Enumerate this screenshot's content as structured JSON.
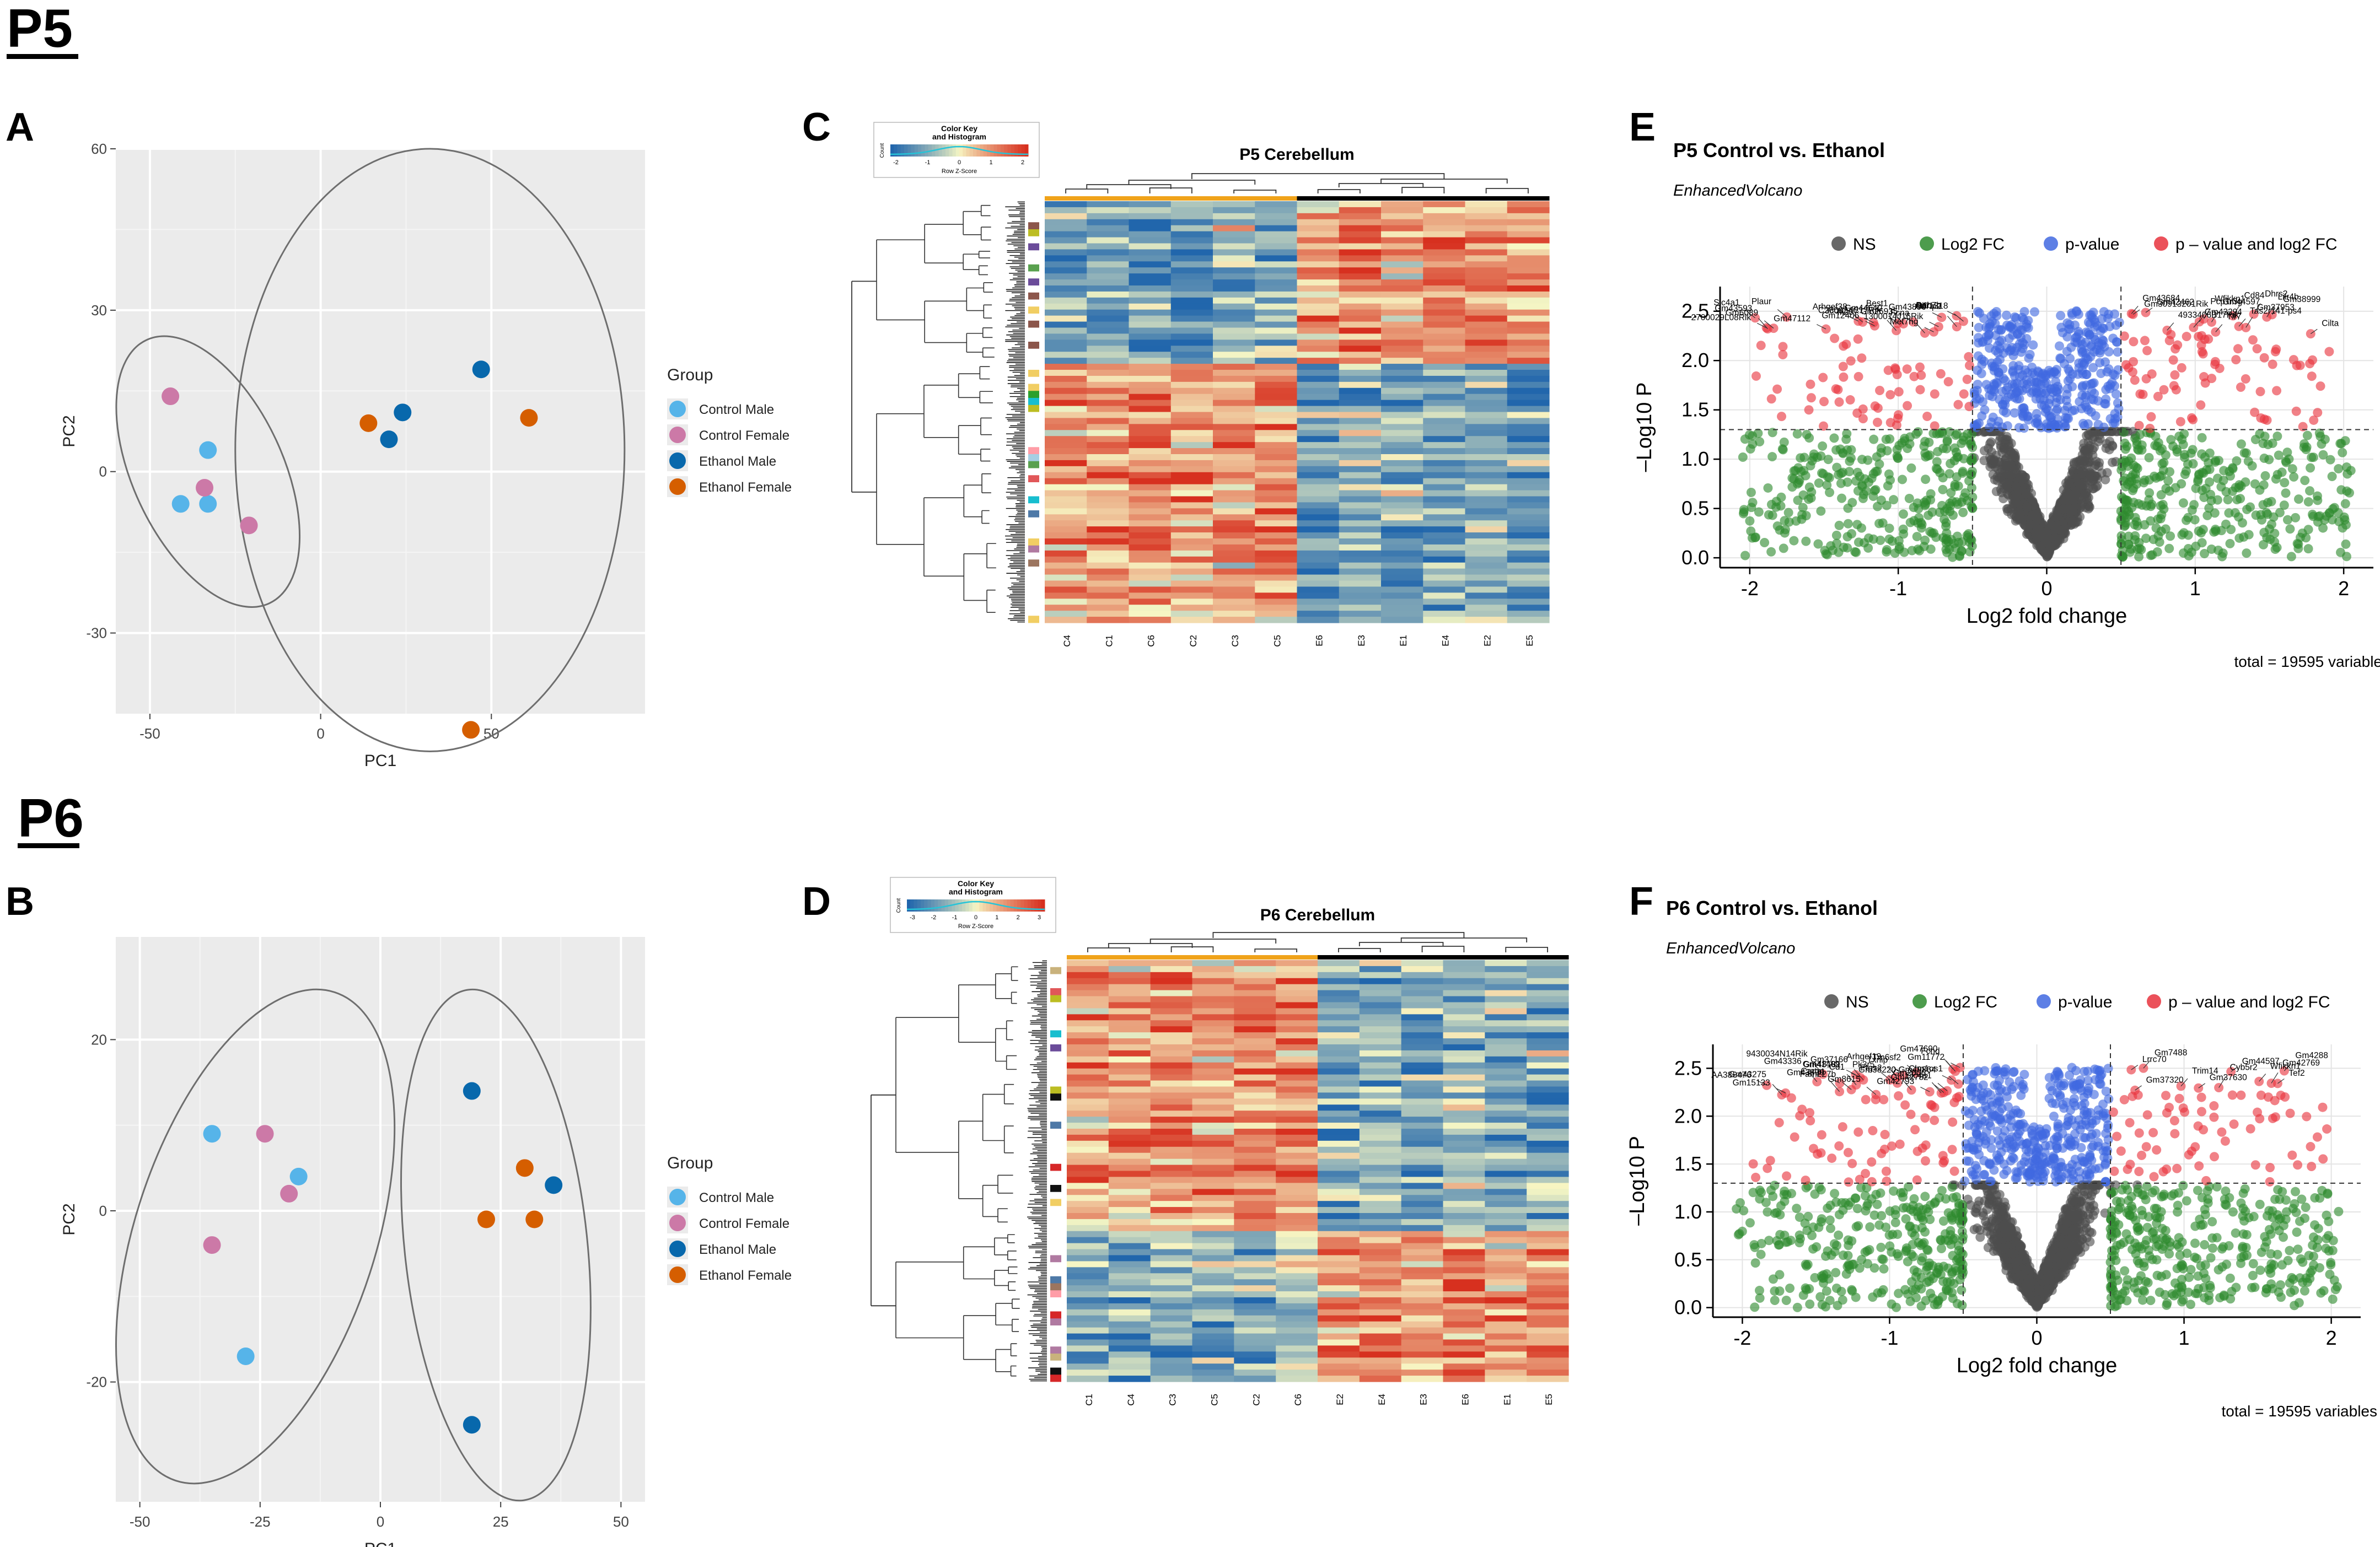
{
  "sections": {
    "p5": {
      "label": "P5"
    },
    "p6": {
      "label": "P6"
    }
  },
  "panels": {
    "A": "A",
    "B": "B",
    "C": "C",
    "D": "D",
    "E": "E",
    "F": "F"
  },
  "colors": {
    "control_male": "#56b4e9",
    "control_female": "#cc79a7",
    "ethanol_male": "#0868ac",
    "ethanol_female": "#d55e00",
    "plot_bg": "#ebebeb",
    "ns": "#4d4d4d",
    "log2fc": "#2e8b2e",
    "pvalue": "#4169e1",
    "both": "#e8333d",
    "heat_low": "#2166ac",
    "heat_mid": "#f7f7c4",
    "heat_high": "#d7301f"
  },
  "pca_legend": {
    "title": "Group",
    "items": [
      "Control Male",
      "Control Female",
      "Ethanol Male",
      "Ethanol Female"
    ]
  },
  "heatmap_common": {
    "color_key_title": "Color Key",
    "histogram_title": "and Histogram",
    "count_label": "Count",
    "z_score_label": "Row Z-Score",
    "ticks": [
      "-2",
      "-1",
      "0",
      "1",
      "2"
    ],
    "ticks_p6": [
      "-3",
      "-2",
      "-1",
      "0",
      "1",
      "2",
      "3"
    ]
  },
  "volcano_common": {
    "subtitle": "EnhancedVolcano",
    "legend_items": [
      "NS",
      "Log2 FC",
      "p-value",
      "p – value and log2 FC"
    ],
    "total": "total = 19595 variables"
  },
  "chart_data": [
    {
      "id": "A",
      "type": "scatter",
      "xlabel": "PC1",
      "ylabel": "PC2",
      "xlim": [
        -60,
        95
      ],
      "ylim": [
        -45,
        60
      ],
      "xticks": [
        -50,
        0,
        50
      ],
      "yticks": [
        -30,
        0,
        30,
        60
      ],
      "series": [
        {
          "name": "Control Male",
          "points": [
            [
              -33,
              4
            ],
            [
              -41,
              -6
            ],
            [
              -33,
              -6
            ]
          ]
        },
        {
          "name": "Control Female",
          "points": [
            [
              -44,
              14
            ],
            [
              -34,
              -3
            ],
            [
              -21,
              -10
            ]
          ]
        },
        {
          "name": "Ethanol Male",
          "points": [
            [
              47,
              19
            ],
            [
              24,
              11
            ],
            [
              20,
              6
            ]
          ]
        },
        {
          "name": "Ethanol Female",
          "points": [
            [
              14,
              9
            ],
            [
              61,
              10
            ],
            [
              44,
              -48
            ]
          ]
        }
      ],
      "ellipses": [
        {
          "center": [
            -33,
            0
          ],
          "rx": 22,
          "ry": 27,
          "rot": -25
        },
        {
          "center": [
            32,
            4
          ],
          "rx": 57,
          "ry": 56,
          "rot": 0
        }
      ]
    },
    {
      "id": "B",
      "type": "scatter",
      "xlabel": "PC1",
      "ylabel": "PC2",
      "xlim": [
        -55,
        55
      ],
      "ylim": [
        -34,
        32
      ],
      "xticks": [
        -50,
        -25,
        0,
        25,
        50
      ],
      "yticks": [
        -20,
        0,
        20
      ],
      "series": [
        {
          "name": "Control Male",
          "points": [
            [
              -35,
              9
            ],
            [
              -17,
              4
            ],
            [
              -28,
              -17
            ]
          ]
        },
        {
          "name": "Control Female",
          "points": [
            [
              -24,
              9
            ],
            [
              -19,
              2
            ],
            [
              -35,
              -4
            ]
          ]
        },
        {
          "name": "Ethanol Male",
          "points": [
            [
              19,
              14
            ],
            [
              36,
              3
            ],
            [
              19,
              -25
            ]
          ]
        },
        {
          "name": "Ethanol Female",
          "points": [
            [
              30,
              5
            ],
            [
              22,
              -1
            ],
            [
              32,
              -1
            ]
          ]
        }
      ],
      "ellipses": [
        {
          "center": [
            -26,
            -3
          ],
          "rx": 25,
          "ry": 30,
          "rot": 18
        },
        {
          "center": [
            24,
            -4
          ],
          "rx": 19,
          "ry": 30,
          "rot": -6
        }
      ]
    },
    {
      "id": "C",
      "type": "heatmap",
      "title": "P5 Cerebellum",
      "columns": [
        "C4",
        "C1",
        "C6",
        "C2",
        "C3",
        "C5",
        "E6",
        "E3",
        "E1",
        "E4",
        "E2",
        "E5"
      ],
      "column_groups": [
        "control",
        "control",
        "control",
        "control",
        "control",
        "control",
        "ethanol",
        "ethanol",
        "ethanol",
        "ethanol",
        "ethanol",
        "ethanol"
      ],
      "top_block_fraction": 0.38,
      "top_block_pattern": "control low / ethanol high",
      "bottom_block_pattern": "control high / ethanol low"
    },
    {
      "id": "D",
      "type": "heatmap",
      "title": "P6 Cerebellum",
      "columns": [
        "C1",
        "C4",
        "C3",
        "C5",
        "C2",
        "C6",
        "E2",
        "E4",
        "E3",
        "E6",
        "E1",
        "E5"
      ],
      "column_groups": [
        "control",
        "control",
        "control",
        "control",
        "control",
        "control",
        "ethanol",
        "ethanol",
        "ethanol",
        "ethanol",
        "ethanol",
        "ethanol"
      ],
      "top_block_fraction": 0.64,
      "top_block_pattern": "control high / ethanol low",
      "bottom_block_pattern": "control low / ethanol high"
    },
    {
      "id": "E",
      "type": "scatter",
      "title": "P5 Control vs. Ethanol",
      "xlabel": "Log2 fold change",
      "ylabel": "–Log10 P",
      "xlim": [
        -2.2,
        2.2
      ],
      "ylim": [
        -0.1,
        2.75
      ],
      "xticks": [
        -2,
        -1,
        0,
        1,
        2
      ],
      "yticks": [
        0.0,
        0.5,
        1.0,
        1.5,
        2.0,
        2.5
      ],
      "ytick_labels": [
        "0.0",
        "0.5",
        "1.0",
        "1.5",
        "2.0",
        "2.5"
      ],
      "fc_cutoff": 0.5,
      "p_cutoff": 1.3,
      "labels": [
        "Gm42462",
        "Gm43684",
        "Dhrs2",
        "Gm30913201Rik",
        "Gm38999",
        "Cd84",
        "Rab7b",
        "Plaur",
        "Lilr4b",
        "Gm43890",
        "Slc4a1",
        "Wfikkn1",
        "Icos",
        "Olfr1318",
        "Pcp1r3g",
        "Gm26935",
        "Arhgef38",
        "Gm44597",
        "Ifi207",
        "Gm44640",
        "Best1",
        "Gm12406",
        "Tas2r141-ps4",
        "Atf7ip2",
        "1300014J16Rik",
        "Gm43294",
        "Gm37953",
        "2700029L08Rik",
        "Gm6089",
        "Gm43593",
        "Gm47112",
        "4933406B17Rik",
        "C230024C17Rik",
        "Met7hg",
        "Tlr7",
        "Fcna",
        "Cilta"
      ]
    },
    {
      "id": "F",
      "type": "scatter",
      "title": "P6 Control vs. Ethanol",
      "xlabel": "Log2 fold change",
      "ylabel": "–Log10 P",
      "xlim": [
        -2.2,
        2.2
      ],
      "ylim": [
        -0.1,
        2.75
      ],
      "xticks": [
        -2,
        -1,
        0,
        1,
        2
      ],
      "yticks": [
        0.0,
        0.5,
        1.0,
        1.5,
        2.0,
        2.5
      ],
      "ytick_labels": [
        "0.0",
        "0.5",
        "1.0",
        "1.5",
        "2.0",
        "2.5"
      ],
      "fc_cutoff": 0.5,
      "p_cutoff": 1.3,
      "labels": [
        "Gm11772",
        "Gm7488",
        "Gm47690",
        "Lrrc70",
        "Gm4288",
        "Fcnd",
        "Gm44597",
        "Tm6sf2",
        "9430034N14Rik",
        "Gm41409",
        "Txnip",
        "Arhgef19",
        "Cd1",
        "Pk3r5",
        "Gm37166",
        "Gm49864",
        "Wfikkn1",
        "Gm43336",
        "Gm43890",
        "Ptgs2",
        "Gm42769",
        "Tef2",
        "Chn1os1",
        "Gm48181",
        "AA386476",
        "Trim14",
        "Cyb5r2",
        "Gm37630",
        "Fam227b",
        "Gm38220",
        "Gm37320",
        "Slc4a1",
        "Cartpt",
        "Gm42793",
        "Gm42782",
        "Gm2606",
        "Gm15133",
        "Gm8615",
        "Gm43275"
      ]
    }
  ]
}
